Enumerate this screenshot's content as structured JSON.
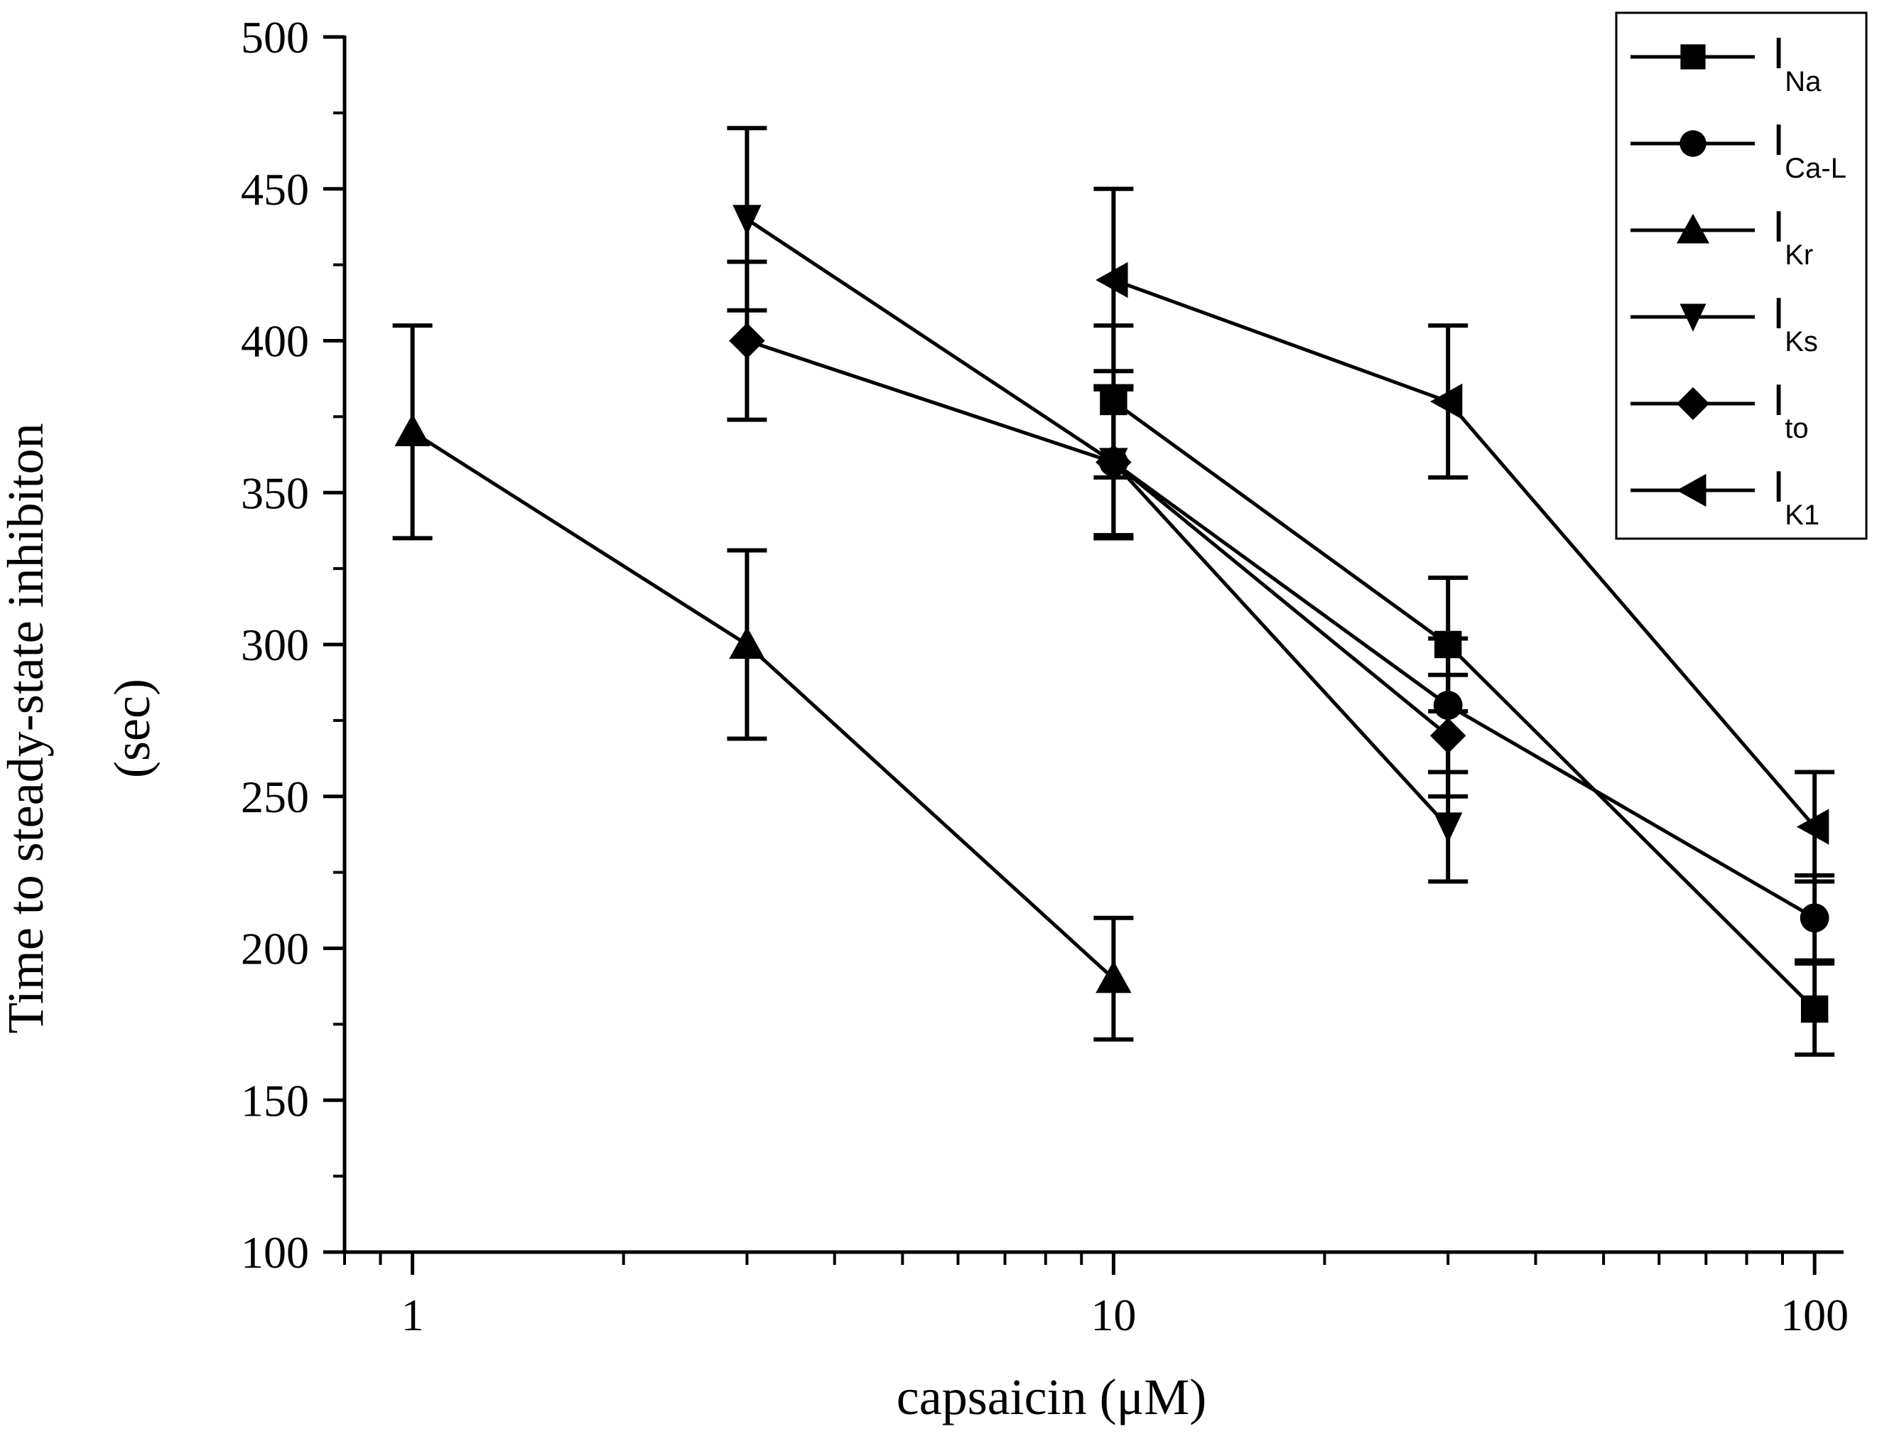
{
  "chart_data": {
    "type": "line",
    "x_scale": "log",
    "xlabel": "capsaicin (μM)",
    "ylabel_lines": [
      "Time to steady-state inhibiton",
      "(sec)"
    ],
    "xlim": [
      0.8,
      110
    ],
    "ylim": [
      100,
      500
    ],
    "x_ticks": [
      1,
      10,
      100
    ],
    "x_tick_labels": [
      "1",
      "10",
      "100"
    ],
    "y_ticks": [
      100,
      150,
      200,
      250,
      300,
      350,
      400,
      450,
      500
    ],
    "y_tick_labels": [
      "100",
      "150",
      "200",
      "250",
      "300",
      "350",
      "400",
      "450",
      "500"
    ],
    "legend_position": "top-right",
    "series": [
      {
        "name": "INa",
        "label_main": "I",
        "label_sub": "Na",
        "marker": "square",
        "x": [
          10,
          30,
          100
        ],
        "y": [
          380,
          300,
          180
        ],
        "err": [
          25,
          22,
          15
        ]
      },
      {
        "name": "ICa-L",
        "label_main": "I",
        "label_sub": "Ca-L",
        "marker": "circle",
        "x": [
          10,
          30,
          100
        ],
        "y": [
          360,
          280,
          210
        ],
        "err": [
          25,
          22,
          14
        ]
      },
      {
        "name": "IKr",
        "label_main": "I",
        "label_sub": "Kr",
        "marker": "triangle-up",
        "x": [
          1,
          3,
          10
        ],
        "y": [
          370,
          300,
          190
        ],
        "err": [
          35,
          31,
          20
        ]
      },
      {
        "name": "IKs",
        "label_main": "I",
        "label_sub": "Ks",
        "marker": "triangle-down",
        "x": [
          3,
          10,
          30
        ],
        "y": [
          440,
          360,
          240
        ],
        "err": [
          30,
          25,
          18
        ]
      },
      {
        "name": "Ito",
        "label_main": "I",
        "label_sub": "to",
        "marker": "diamond",
        "x": [
          3,
          10,
          30
        ],
        "y": [
          400,
          360,
          270
        ],
        "err": [
          26,
          24,
          20
        ]
      },
      {
        "name": "IK1",
        "label_main": "I",
        "label_sub": "K1",
        "marker": "triangle-left",
        "x": [
          10,
          30,
          100
        ],
        "y": [
          420,
          380,
          240
        ],
        "err": [
          30,
          25,
          18
        ]
      }
    ]
  }
}
